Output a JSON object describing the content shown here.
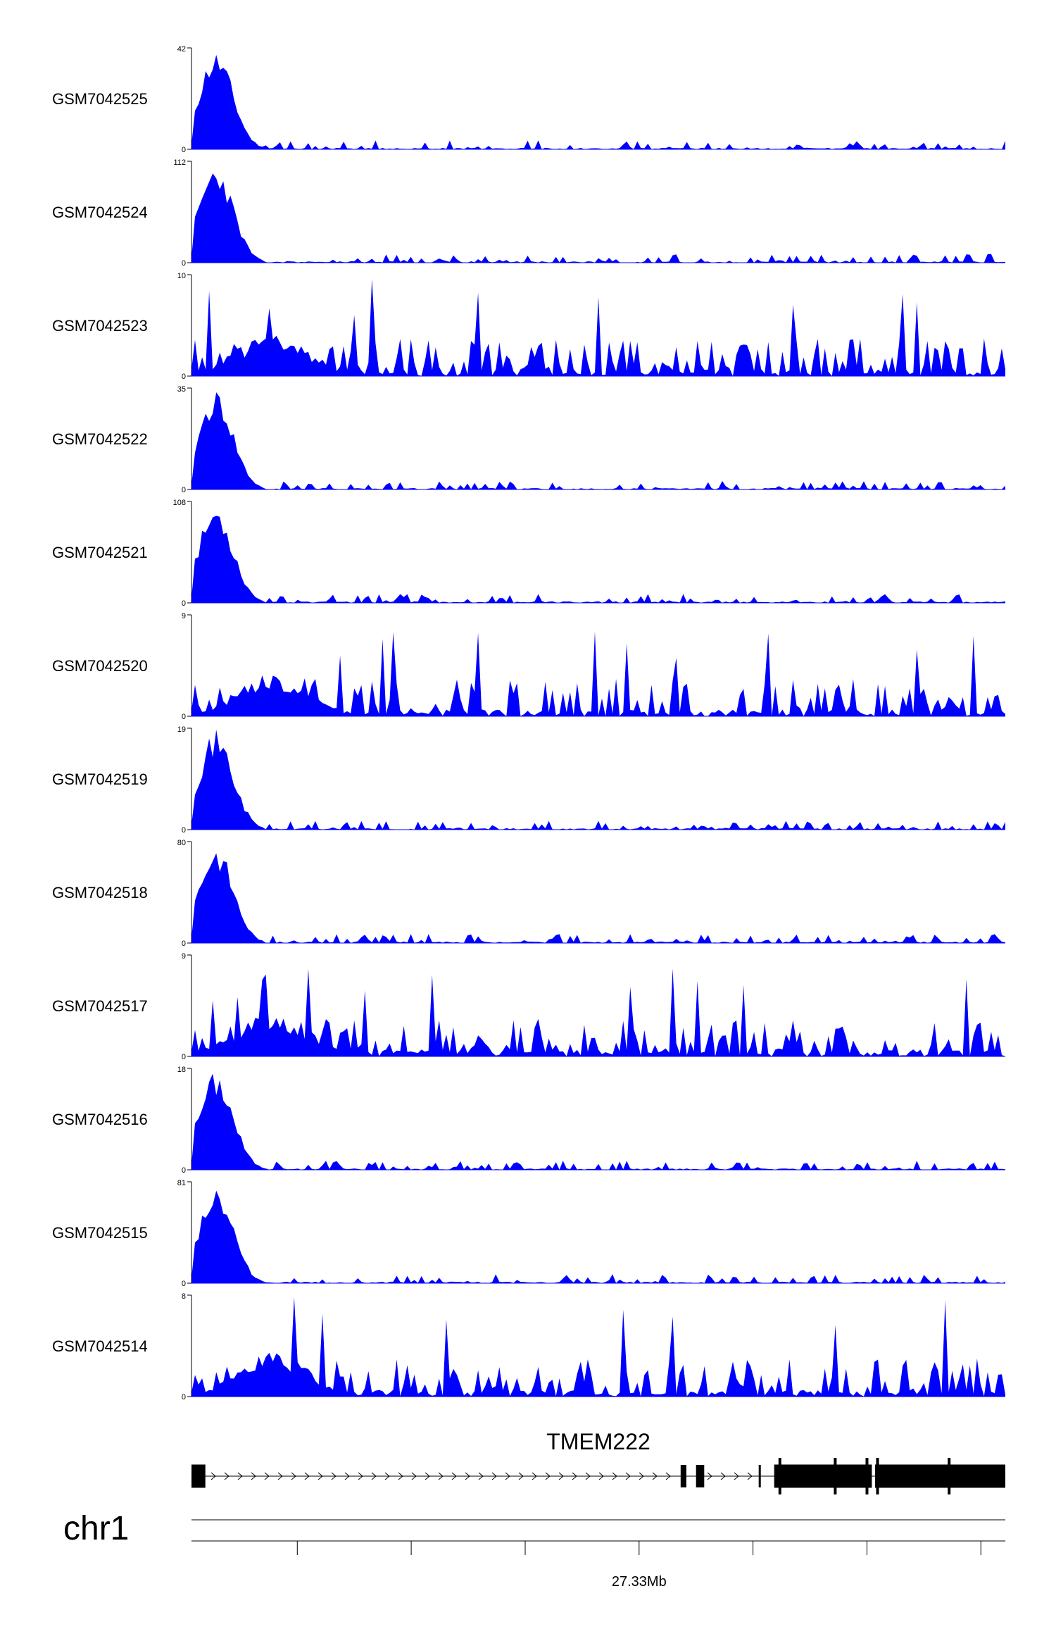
{
  "colors": {
    "track_fill": "#0000ff",
    "axis": "#000000",
    "gene": "#000000",
    "background": "#ffffff"
  },
  "chart_data": {
    "type": "area",
    "tracks": [
      {
        "name": "GSM7042525",
        "ymax": 42,
        "ymin": 0,
        "shape": "peak",
        "seed": 11
      },
      {
        "name": "GSM7042524",
        "ymax": 112,
        "ymin": 0,
        "shape": "peak",
        "seed": 23
      },
      {
        "name": "GSM7042523",
        "ymax": 10,
        "ymin": 0,
        "shape": "broad",
        "seed": 37
      },
      {
        "name": "GSM7042522",
        "ymax": 35,
        "ymin": 0,
        "shape": "peak",
        "seed": 41
      },
      {
        "name": "GSM7042521",
        "ymax": 108,
        "ymin": 0,
        "shape": "peak",
        "seed": 53
      },
      {
        "name": "GSM7042520",
        "ymax": 9,
        "ymin": 0,
        "shape": "broad",
        "seed": 67
      },
      {
        "name": "GSM7042519",
        "ymax": 19,
        "ymin": 0,
        "shape": "peak",
        "seed": 71
      },
      {
        "name": "GSM7042518",
        "ymax": 80,
        "ymin": 0,
        "shape": "peak",
        "seed": 83
      },
      {
        "name": "GSM7042517",
        "ymax": 9,
        "ymin": 0,
        "shape": "broad",
        "seed": 97
      },
      {
        "name": "GSM7042516",
        "ymax": 18,
        "ymin": 0,
        "shape": "peak",
        "seed": 101
      },
      {
        "name": "GSM7042515",
        "ymax": 81,
        "ymin": 0,
        "shape": "peak",
        "seed": 113
      },
      {
        "name": "GSM7042514",
        "ymax": 8,
        "ymin": 0,
        "shape": "broad",
        "seed": 127
      }
    ],
    "gene": {
      "name": "TMEM222",
      "strand": "+",
      "exons": [
        [
          0.0,
          0.017
        ],
        [
          0.601,
          0.608
        ],
        [
          0.62,
          0.63
        ],
        [
          0.697,
          0.699
        ],
        [
          0.716,
          0.836
        ],
        [
          0.84,
          1.0
        ]
      ],
      "exon_lines": [
        0.723,
        0.791,
        0.83,
        0.843,
        0.931
      ]
    },
    "chromosome": "chr1",
    "axis": {
      "ticks": [
        0.13,
        0.27,
        0.41,
        0.55,
        0.69,
        0.83,
        0.97
      ],
      "labeled_tick": {
        "pos": 0.55,
        "label": "27.33Mb"
      }
    }
  }
}
